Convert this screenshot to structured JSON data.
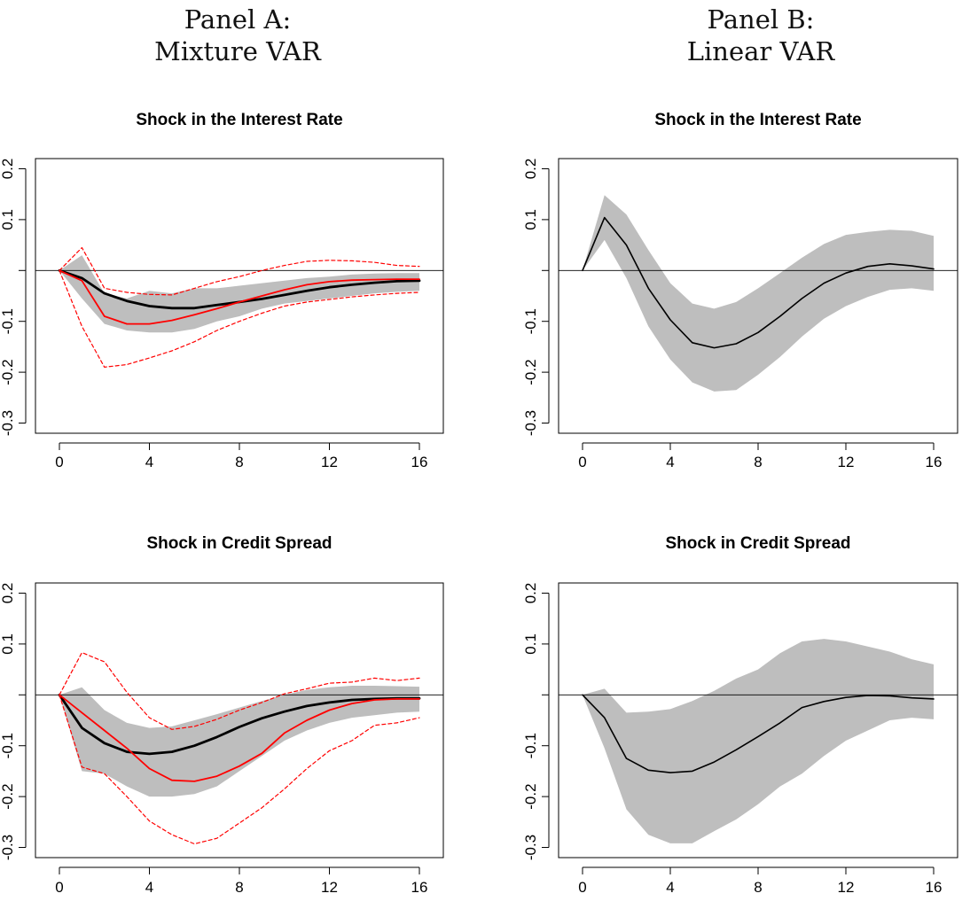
{
  "panels": [
    {
      "title_line1": "Panel A:",
      "title_line2": "Mixture VAR"
    },
    {
      "title_line1": "Panel B:",
      "title_line2": "Linear VAR"
    }
  ],
  "colors": {
    "band": "#bebebe",
    "mixture_median": "#000000",
    "linear_median": "#000000",
    "red_series": "#ff0000",
    "zero_line": "#000000"
  },
  "chart_data": [
    {
      "type": "line",
      "panel": "Panel A: Mixture VAR",
      "title": "Shock in the Interest Rate",
      "xlabel": "",
      "ylabel": "",
      "x": [
        0,
        1,
        2,
        3,
        4,
        5,
        6,
        7,
        8,
        9,
        10,
        11,
        12,
        13,
        14,
        15,
        16
      ],
      "xticks": [
        0,
        4,
        8,
        12,
        16
      ],
      "yticks": [
        "0.2",
        "0.1",
        "",
        "-0.1",
        "-0.2",
        "-0.3"
      ],
      "ylim": [
        -0.32,
        0.22
      ],
      "band": {
        "upper": [
          0,
          0.03,
          -0.045,
          -0.055,
          -0.04,
          -0.045,
          -0.035,
          -0.035,
          -0.03,
          -0.025,
          -0.02,
          -0.015,
          -0.012,
          -0.008,
          -0.006,
          -0.005,
          -0.005
        ],
        "lower": [
          0,
          -0.055,
          -0.105,
          -0.118,
          -0.122,
          -0.122,
          -0.115,
          -0.1,
          -0.09,
          -0.075,
          -0.065,
          -0.06,
          -0.055,
          -0.05,
          -0.045,
          -0.042,
          -0.04
        ]
      },
      "series": [
        {
          "values": [
            0,
            -0.015,
            -0.045,
            -0.06,
            -0.07,
            -0.074,
            -0.074,
            -0.068,
            -0.062,
            -0.056,
            -0.048,
            -0.04,
            -0.033,
            -0.028,
            -0.024,
            -0.021,
            -0.02
          ],
          "color": "#000000",
          "style": "solid",
          "width": 2.8
        },
        {
          "values": [
            0,
            -0.02,
            -0.09,
            -0.105,
            -0.105,
            -0.098,
            -0.087,
            -0.075,
            -0.062,
            -0.05,
            -0.038,
            -0.028,
            -0.022,
            -0.019,
            -0.018,
            -0.017,
            -0.017
          ],
          "color": "#ff0000",
          "style": "solid",
          "width": 1.8
        },
        {
          "values": [
            0,
            0.045,
            -0.035,
            -0.043,
            -0.047,
            -0.048,
            -0.035,
            -0.022,
            -0.012,
            0.0,
            0.01,
            0.018,
            0.02,
            0.019,
            0.016,
            0.01,
            0.008
          ],
          "color": "#ff0000",
          "style": "dashed",
          "width": 1.2
        },
        {
          "values": [
            0,
            -0.11,
            -0.19,
            -0.185,
            -0.172,
            -0.158,
            -0.14,
            -0.118,
            -0.1,
            -0.084,
            -0.07,
            -0.062,
            -0.057,
            -0.052,
            -0.048,
            -0.045,
            -0.043
          ],
          "color": "#ff0000",
          "style": "dashed",
          "width": 1.2
        }
      ]
    },
    {
      "type": "line",
      "panel": "Panel B: Linear VAR",
      "title": "Shock in the Interest Rate",
      "xlabel": "",
      "ylabel": "",
      "x": [
        0,
        1,
        2,
        3,
        4,
        5,
        6,
        7,
        8,
        9,
        10,
        11,
        12,
        13,
        14,
        15,
        16
      ],
      "xticks": [
        0,
        4,
        8,
        12,
        16
      ],
      "yticks": [
        "0.2",
        "0.1",
        "",
        "-0.1",
        "-0.2",
        "-0.3"
      ],
      "ylim": [
        -0.32,
        0.22
      ],
      "band": {
        "upper": [
          0,
          0.148,
          0.11,
          0.04,
          -0.025,
          -0.065,
          -0.075,
          -0.062,
          -0.035,
          -0.005,
          0.025,
          0.052,
          0.07,
          0.076,
          0.08,
          0.078,
          0.068
        ],
        "lower": [
          0,
          0.06,
          -0.015,
          -0.11,
          -0.175,
          -0.22,
          -0.238,
          -0.235,
          -0.205,
          -0.17,
          -0.13,
          -0.095,
          -0.07,
          -0.052,
          -0.038,
          -0.035,
          -0.04
        ]
      },
      "series": [
        {
          "values": [
            0,
            0.104,
            0.05,
            -0.035,
            -0.097,
            -0.142,
            -0.152,
            -0.144,
            -0.122,
            -0.09,
            -0.055,
            -0.025,
            -0.005,
            0.008,
            0.013,
            0.009,
            0.003
          ],
          "color": "#000000",
          "style": "solid",
          "width": 1.6
        }
      ]
    },
    {
      "type": "line",
      "panel": "Panel A: Mixture VAR",
      "title": "Shock in Credit Spread",
      "xlabel": "",
      "ylabel": "",
      "x": [
        0,
        1,
        2,
        3,
        4,
        5,
        6,
        7,
        8,
        9,
        10,
        11,
        12,
        13,
        14,
        15,
        16
      ],
      "xticks": [
        0,
        4,
        8,
        12,
        16
      ],
      "yticks": [
        "0.2",
        "0.1",
        "",
        "-0.1",
        "-0.2",
        "-0.3"
      ],
      "ylim": [
        -0.32,
        0.22
      ],
      "band": {
        "upper": [
          0,
          0.015,
          -0.03,
          -0.055,
          -0.065,
          -0.062,
          -0.05,
          -0.038,
          -0.025,
          -0.012,
          0.0,
          0.01,
          0.015,
          0.018,
          0.018,
          0.017,
          0.016
        ],
        "lower": [
          0,
          -0.15,
          -0.155,
          -0.18,
          -0.2,
          -0.2,
          -0.195,
          -0.18,
          -0.15,
          -0.12,
          -0.09,
          -0.07,
          -0.055,
          -0.045,
          -0.04,
          -0.035,
          -0.033
        ]
      },
      "series": [
        {
          "values": [
            0,
            -0.065,
            -0.095,
            -0.112,
            -0.116,
            -0.112,
            -0.1,
            -0.083,
            -0.063,
            -0.046,
            -0.033,
            -0.022,
            -0.015,
            -0.01,
            -0.008,
            -0.007,
            -0.007
          ],
          "color": "#000000",
          "style": "solid",
          "width": 2.8
        },
        {
          "values": [
            0,
            -0.035,
            -0.07,
            -0.105,
            -0.145,
            -0.168,
            -0.17,
            -0.16,
            -0.14,
            -0.115,
            -0.075,
            -0.05,
            -0.03,
            -0.017,
            -0.01,
            -0.008,
            -0.008
          ],
          "color": "#ff0000",
          "style": "solid",
          "width": 1.8
        },
        {
          "values": [
            0,
            0.083,
            0.065,
            0.005,
            -0.045,
            -0.068,
            -0.062,
            -0.048,
            -0.03,
            -0.015,
            0.002,
            0.012,
            0.023,
            0.025,
            0.033,
            0.028,
            0.033
          ],
          "color": "#ff0000",
          "style": "dashed",
          "width": 1.2
        },
        {
          "values": [
            0,
            -0.142,
            -0.155,
            -0.2,
            -0.248,
            -0.275,
            -0.293,
            -0.282,
            -0.252,
            -0.222,
            -0.185,
            -0.145,
            -0.11,
            -0.09,
            -0.06,
            -0.055,
            -0.045
          ],
          "color": "#ff0000",
          "style": "dashed",
          "width": 1.2
        }
      ]
    },
    {
      "type": "line",
      "panel": "Panel B: Linear VAR",
      "title": "Shock in Credit Spread",
      "xlabel": "",
      "ylabel": "",
      "x": [
        0,
        1,
        2,
        3,
        4,
        5,
        6,
        7,
        8,
        9,
        10,
        11,
        12,
        13,
        14,
        15,
        16
      ],
      "xticks": [
        0,
        4,
        8,
        12,
        16
      ],
      "yticks": [
        "0.2",
        "0.1",
        "",
        "-0.1",
        "-0.2",
        "-0.3"
      ],
      "ylim": [
        -0.32,
        0.22
      ],
      "band": {
        "upper": [
          0,
          0.012,
          -0.035,
          -0.033,
          -0.028,
          -0.012,
          0.008,
          0.032,
          0.05,
          0.082,
          0.105,
          0.11,
          0.105,
          0.095,
          0.085,
          0.07,
          0.06
        ],
        "lower": [
          0,
          -0.105,
          -0.225,
          -0.275,
          -0.292,
          -0.292,
          -0.268,
          -0.245,
          -0.215,
          -0.18,
          -0.155,
          -0.12,
          -0.09,
          -0.07,
          -0.05,
          -0.045,
          -0.048
        ]
      },
      "series": [
        {
          "values": [
            0,
            -0.045,
            -0.125,
            -0.148,
            -0.153,
            -0.15,
            -0.132,
            -0.108,
            -0.082,
            -0.055,
            -0.025,
            -0.013,
            -0.005,
            -0.001,
            -0.002,
            -0.006,
            -0.008
          ],
          "color": "#000000",
          "style": "solid",
          "width": 1.6
        }
      ]
    }
  ]
}
